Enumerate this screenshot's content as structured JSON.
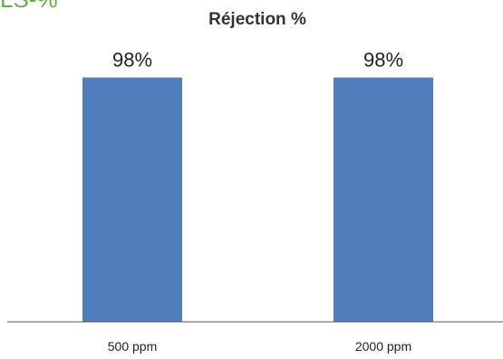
{
  "page_heading": "LS-%",
  "chart_data": {
    "type": "bar",
    "title": "Réjection %",
    "xlabel": "",
    "ylabel": "",
    "categories": [
      "500 ppm",
      "2000 ppm"
    ],
    "values": [
      98,
      98
    ],
    "data_labels": [
      "98%",
      "98%"
    ],
    "ylim": [
      0,
      100
    ],
    "grid": false,
    "legend": "none",
    "colors": {
      "bar": "#4f7ebb",
      "axis": "#555555",
      "title": "#333333",
      "heading": "#62b043"
    }
  }
}
